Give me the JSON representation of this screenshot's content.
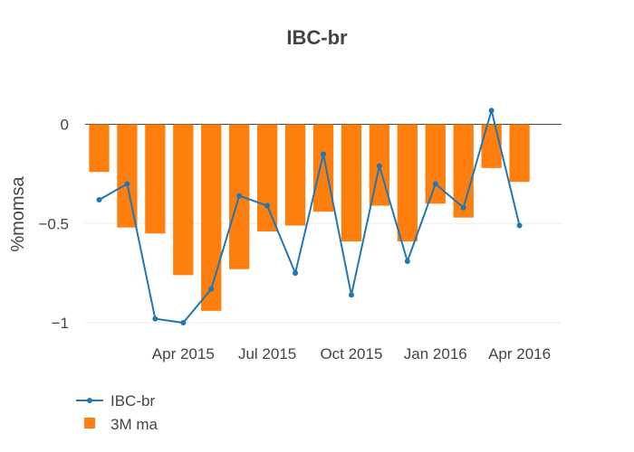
{
  "chart_data": {
    "type": "bar+line",
    "title": "IBC-br",
    "ylabel": "%momsa",
    "xlabel": "",
    "x": [
      "2015-01",
      "2015-02",
      "2015-03",
      "2015-04",
      "2015-05",
      "2015-06",
      "2015-07",
      "2015-08",
      "2015-09",
      "2015-10",
      "2015-11",
      "2015-12",
      "2016-01",
      "2016-02",
      "2016-03",
      "2016-04",
      "2016-05"
    ],
    "x_ticks": [
      {
        "x": "2015-04",
        "label": "Apr 2015"
      },
      {
        "x": "2015-07",
        "label": "Jul 2015"
      },
      {
        "x": "2015-10",
        "label": "Oct 2015"
      },
      {
        "x": "2016-01",
        "label": "Jan 2016"
      },
      {
        "x": "2016-04",
        "label": "Apr 2016"
      }
    ],
    "y_ticks": [
      {
        "value": 0,
        "label": "0"
      },
      {
        "value": -0.5,
        "label": "−0.5"
      },
      {
        "value": -1,
        "label": "−1"
      }
    ],
    "ylim": [
      -1.05,
      0.08
    ],
    "grid": true,
    "legend_position": "bottom-left",
    "series": [
      {
        "name": "IBC-br",
        "kind": "line",
        "color": "#1f77b4",
        "values": [
          -0.38,
          -0.3,
          -0.98,
          -1.0,
          -0.83,
          -0.36,
          -0.41,
          -0.75,
          -0.15,
          -0.86,
          -0.21,
          -0.69,
          -0.3,
          -0.42,
          0.07,
          -0.51,
          null
        ]
      },
      {
        "name": "3M ma",
        "kind": "bar",
        "color": "#ff7f0e",
        "values": [
          -0.24,
          -0.52,
          -0.55,
          -0.76,
          -0.94,
          -0.73,
          -0.54,
          -0.51,
          -0.44,
          -0.59,
          -0.41,
          -0.59,
          -0.4,
          -0.47,
          -0.22,
          -0.29,
          null
        ]
      }
    ]
  }
}
